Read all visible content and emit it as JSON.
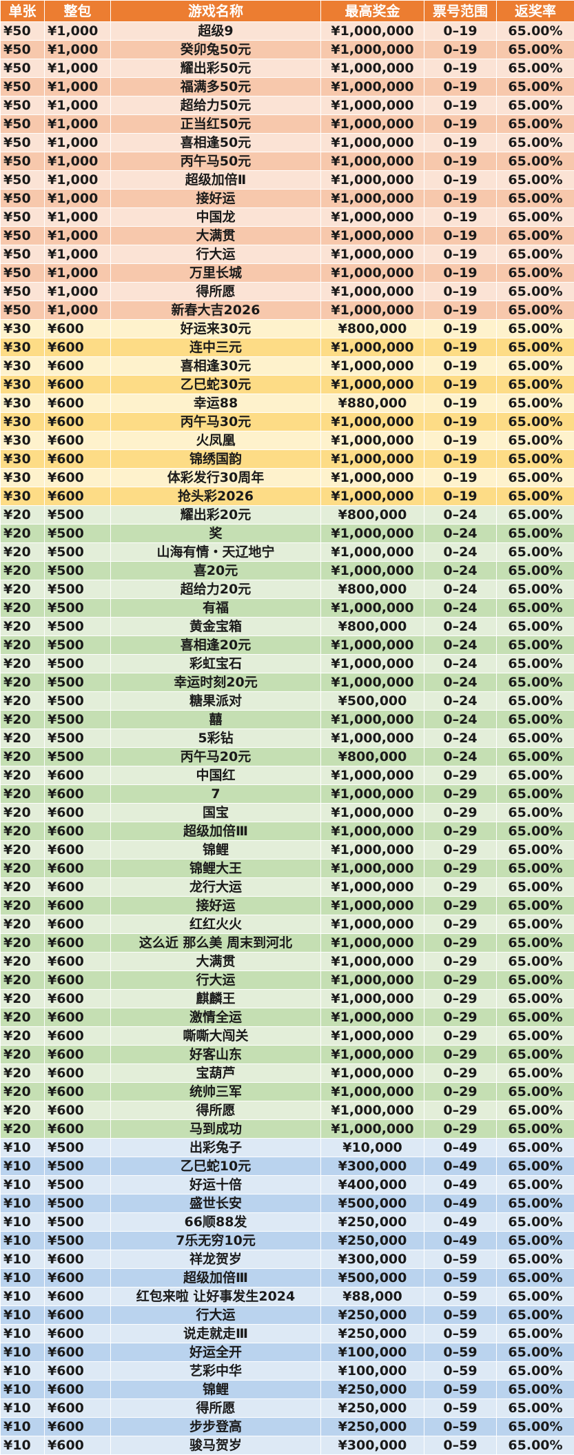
{
  "headers": [
    "单张",
    "整包",
    "游戏名称",
    "最高奖金",
    "票号范围",
    "返奖率"
  ],
  "tier_colors": {
    "header": "#ec7d31",
    "t50": [
      "#fbe3d5",
      "#f7c8ac"
    ],
    "t30": [
      "#fef2cc",
      "#fddc86"
    ],
    "t20": [
      "#e3eed9",
      "#c5dfb3"
    ],
    "t10": [
      "#dde9f5",
      "#bad3ee"
    ]
  },
  "rows": [
    {
      "tier": "t50",
      "price": "¥50",
      "pack": "¥1,000",
      "name": "超级9",
      "prize": "¥1,000,000",
      "range": "0–19",
      "rate": "65.00%"
    },
    {
      "tier": "t50",
      "price": "¥50",
      "pack": "¥1,000",
      "name": "癸卯兔50元",
      "prize": "¥1,000,000",
      "range": "0–19",
      "rate": "65.00%"
    },
    {
      "tier": "t50",
      "price": "¥50",
      "pack": "¥1,000",
      "name": "耀出彩50元",
      "prize": "¥1,000,000",
      "range": "0–19",
      "rate": "65.00%"
    },
    {
      "tier": "t50",
      "price": "¥50",
      "pack": "¥1,000",
      "name": "福满多50元",
      "prize": "¥1,000,000",
      "range": "0–19",
      "rate": "65.00%"
    },
    {
      "tier": "t50",
      "price": "¥50",
      "pack": "¥1,000",
      "name": "超给力50元",
      "prize": "¥1,000,000",
      "range": "0–19",
      "rate": "65.00%"
    },
    {
      "tier": "t50",
      "price": "¥50",
      "pack": "¥1,000",
      "name": "正当红50元",
      "prize": "¥1,000,000",
      "range": "0–19",
      "rate": "65.00%"
    },
    {
      "tier": "t50",
      "price": "¥50",
      "pack": "¥1,000",
      "name": "喜相逢50元",
      "prize": "¥1,000,000",
      "range": "0–19",
      "rate": "65.00%"
    },
    {
      "tier": "t50",
      "price": "¥50",
      "pack": "¥1,000",
      "name": "丙午马50元",
      "prize": "¥1,000,000",
      "range": "0–19",
      "rate": "65.00%"
    },
    {
      "tier": "t50",
      "price": "¥50",
      "pack": "¥1,000",
      "name": "超级加倍Ⅱ",
      "prize": "¥1,000,000",
      "range": "0–19",
      "rate": "65.00%"
    },
    {
      "tier": "t50",
      "price": "¥50",
      "pack": "¥1,000",
      "name": "接好运",
      "prize": "¥1,000,000",
      "range": "0–19",
      "rate": "65.00%"
    },
    {
      "tier": "t50",
      "price": "¥50",
      "pack": "¥1,000",
      "name": "中国龙",
      "prize": "¥1,000,000",
      "range": "0–19",
      "rate": "65.00%"
    },
    {
      "tier": "t50",
      "price": "¥50",
      "pack": "¥1,000",
      "name": "大满贯",
      "prize": "¥1,000,000",
      "range": "0–19",
      "rate": "65.00%"
    },
    {
      "tier": "t50",
      "price": "¥50",
      "pack": "¥1,000",
      "name": "行大运",
      "prize": "¥1,000,000",
      "range": "0–19",
      "rate": "65.00%"
    },
    {
      "tier": "t50",
      "price": "¥50",
      "pack": "¥1,000",
      "name": "万里长城",
      "prize": "¥1,000,000",
      "range": "0–19",
      "rate": "65.00%"
    },
    {
      "tier": "t50",
      "price": "¥50",
      "pack": "¥1,000",
      "name": "得所愿",
      "prize": "¥1,000,000",
      "range": "0–19",
      "rate": "65.00%"
    },
    {
      "tier": "t50",
      "price": "¥50",
      "pack": "¥1,000",
      "name": "新春大吉2026",
      "prize": "¥1,000,000",
      "range": "0–19",
      "rate": "65.00%"
    },
    {
      "tier": "t30",
      "price": "¥30",
      "pack": "¥600",
      "name": "好运来30元",
      "prize": "¥800,000",
      "range": "0–19",
      "rate": "65.00%"
    },
    {
      "tier": "t30",
      "price": "¥30",
      "pack": "¥600",
      "name": "连中三元",
      "prize": "¥1,000,000",
      "range": "0–19",
      "rate": "65.00%"
    },
    {
      "tier": "t30",
      "price": "¥30",
      "pack": "¥600",
      "name": "喜相逢30元",
      "prize": "¥1,000,000",
      "range": "0–19",
      "rate": "65.00%"
    },
    {
      "tier": "t30",
      "price": "¥30",
      "pack": "¥600",
      "name": "乙巳蛇30元",
      "prize": "¥1,000,000",
      "range": "0–19",
      "rate": "65.00%"
    },
    {
      "tier": "t30",
      "price": "¥30",
      "pack": "¥600",
      "name": "幸运88",
      "prize": "¥880,000",
      "range": "0–19",
      "rate": "65.00%"
    },
    {
      "tier": "t30",
      "price": "¥30",
      "pack": "¥600",
      "name": "丙午马30元",
      "prize": "¥1,000,000",
      "range": "0–19",
      "rate": "65.00%"
    },
    {
      "tier": "t30",
      "price": "¥30",
      "pack": "¥600",
      "name": "火凤凰",
      "prize": "¥1,000,000",
      "range": "0–19",
      "rate": "65.00%"
    },
    {
      "tier": "t30",
      "price": "¥30",
      "pack": "¥600",
      "name": "锦绣国韵",
      "prize": "¥1,000,000",
      "range": "0–19",
      "rate": "65.00%"
    },
    {
      "tier": "t30",
      "price": "¥30",
      "pack": "¥600",
      "name": "体彩发行30周年",
      "prize": "¥1,000,000",
      "range": "0–19",
      "rate": "65.00%"
    },
    {
      "tier": "t30",
      "price": "¥30",
      "pack": "¥600",
      "name": "抢头彩2026",
      "prize": "¥1,000,000",
      "range": "0–19",
      "rate": "65.00%"
    },
    {
      "tier": "t20",
      "price": "¥20",
      "pack": "¥500",
      "name": "耀出彩20元",
      "prize": "¥800,000",
      "range": "0–24",
      "rate": "65.00%"
    },
    {
      "tier": "t20",
      "price": "¥20",
      "pack": "¥500",
      "name": "奖",
      "prize": "¥1,000,000",
      "range": "0–24",
      "rate": "65.00%"
    },
    {
      "tier": "t20",
      "price": "¥20",
      "pack": "¥500",
      "name": "山海有情・天辽地宁",
      "prize": "¥1,000,000",
      "range": "0–24",
      "rate": "65.00%"
    },
    {
      "tier": "t20",
      "price": "¥20",
      "pack": "¥500",
      "name": "喜20元",
      "prize": "¥1,000,000",
      "range": "0–24",
      "rate": "65.00%"
    },
    {
      "tier": "t20",
      "price": "¥20",
      "pack": "¥500",
      "name": "超给力20元",
      "prize": "¥800,000",
      "range": "0–24",
      "rate": "65.00%"
    },
    {
      "tier": "t20",
      "price": "¥20",
      "pack": "¥500",
      "name": "有福",
      "prize": "¥1,000,000",
      "range": "0–24",
      "rate": "65.00%"
    },
    {
      "tier": "t20",
      "price": "¥20",
      "pack": "¥500",
      "name": "黄金宝箱",
      "prize": "¥800,000",
      "range": "0–24",
      "rate": "65.00%"
    },
    {
      "tier": "t20",
      "price": "¥20",
      "pack": "¥500",
      "name": "喜相逢20元",
      "prize": "¥1,000,000",
      "range": "0–24",
      "rate": "65.00%"
    },
    {
      "tier": "t20",
      "price": "¥20",
      "pack": "¥500",
      "name": "彩虹宝石",
      "prize": "¥1,000,000",
      "range": "0–24",
      "rate": "65.00%"
    },
    {
      "tier": "t20",
      "price": "¥20",
      "pack": "¥500",
      "name": "幸运时刻20元",
      "prize": "¥1,000,000",
      "range": "0–24",
      "rate": "65.00%"
    },
    {
      "tier": "t20",
      "price": "¥20",
      "pack": "¥500",
      "name": "糖果派对",
      "prize": "¥500,000",
      "range": "0–24",
      "rate": "65.00%"
    },
    {
      "tier": "t20",
      "price": "¥20",
      "pack": "¥500",
      "name": "囍",
      "prize": "¥1,000,000",
      "range": "0–24",
      "rate": "65.00%"
    },
    {
      "tier": "t20",
      "price": "¥20",
      "pack": "¥500",
      "name": "5彩钻",
      "prize": "¥1,000,000",
      "range": "0–24",
      "rate": "65.00%"
    },
    {
      "tier": "t20",
      "price": "¥20",
      "pack": "¥500",
      "name": "丙午马20元",
      "prize": "¥800,000",
      "range": "0–24",
      "rate": "65.00%"
    },
    {
      "tier": "t20",
      "price": "¥20",
      "pack": "¥600",
      "name": "中国红",
      "prize": "¥1,000,000",
      "range": "0–29",
      "rate": "65.00%"
    },
    {
      "tier": "t20",
      "price": "¥20",
      "pack": "¥600",
      "name": "7",
      "prize": "¥1,000,000",
      "range": "0–29",
      "rate": "65.00%"
    },
    {
      "tier": "t20",
      "price": "¥20",
      "pack": "¥600",
      "name": "国宝",
      "prize": "¥1,000,000",
      "range": "0–29",
      "rate": "65.00%"
    },
    {
      "tier": "t20",
      "price": "¥20",
      "pack": "¥600",
      "name": "超级加倍Ⅲ",
      "prize": "¥1,000,000",
      "range": "0–29",
      "rate": "65.00%"
    },
    {
      "tier": "t20",
      "price": "¥20",
      "pack": "¥600",
      "name": "锦鲤",
      "prize": "¥1,000,000",
      "range": "0–29",
      "rate": "65.00%"
    },
    {
      "tier": "t20",
      "price": "¥20",
      "pack": "¥600",
      "name": "锦鲤大王",
      "prize": "¥1,000,000",
      "range": "0–29",
      "rate": "65.00%"
    },
    {
      "tier": "t20",
      "price": "¥20",
      "pack": "¥600",
      "name": "龙行大运",
      "prize": "¥1,000,000",
      "range": "0–29",
      "rate": "65.00%"
    },
    {
      "tier": "t20",
      "price": "¥20",
      "pack": "¥600",
      "name": "接好运",
      "prize": "¥1,000,000",
      "range": "0–29",
      "rate": "65.00%"
    },
    {
      "tier": "t20",
      "price": "¥20",
      "pack": "¥600",
      "name": "红红火火",
      "prize": "¥1,000,000",
      "range": "0–29",
      "rate": "65.00%"
    },
    {
      "tier": "t20",
      "price": "¥20",
      "pack": "¥600",
      "name": "这么近 那么美 周末到河北",
      "prize": "¥1,000,000",
      "range": "0–29",
      "rate": "65.00%"
    },
    {
      "tier": "t20",
      "price": "¥20",
      "pack": "¥600",
      "name": "大满贯",
      "prize": "¥1,000,000",
      "range": "0–29",
      "rate": "65.00%"
    },
    {
      "tier": "t20",
      "price": "¥20",
      "pack": "¥600",
      "name": "行大运",
      "prize": "¥1,000,000",
      "range": "0–29",
      "rate": "65.00%"
    },
    {
      "tier": "t20",
      "price": "¥20",
      "pack": "¥600",
      "name": "麒麟王",
      "prize": "¥1,000,000",
      "range": "0–29",
      "rate": "65.00%"
    },
    {
      "tier": "t20",
      "price": "¥20",
      "pack": "¥600",
      "name": "激情全运",
      "prize": "¥1,000,000",
      "range": "0–29",
      "rate": "65.00%"
    },
    {
      "tier": "t20",
      "price": "¥20",
      "pack": "¥600",
      "name": "嘶嘶大闯关",
      "prize": "¥1,000,000",
      "range": "0–29",
      "rate": "65.00%"
    },
    {
      "tier": "t20",
      "price": "¥20",
      "pack": "¥600",
      "name": "好客山东",
      "prize": "¥1,000,000",
      "range": "0–29",
      "rate": "65.00%"
    },
    {
      "tier": "t20",
      "price": "¥20",
      "pack": "¥600",
      "name": "宝葫芦",
      "prize": "¥1,000,000",
      "range": "0–29",
      "rate": "65.00%"
    },
    {
      "tier": "t20",
      "price": "¥20",
      "pack": "¥600",
      "name": "统帅三军",
      "prize": "¥1,000,000",
      "range": "0–29",
      "rate": "65.00%"
    },
    {
      "tier": "t20",
      "price": "¥20",
      "pack": "¥600",
      "name": "得所愿",
      "prize": "¥1,000,000",
      "range": "0–29",
      "rate": "65.00%"
    },
    {
      "tier": "t20",
      "price": "¥20",
      "pack": "¥600",
      "name": "马到成功",
      "prize": "¥1,000,000",
      "range": "0–29",
      "rate": "65.00%"
    },
    {
      "tier": "t10",
      "price": "¥10",
      "pack": "¥500",
      "name": "出彩兔子",
      "prize": "¥10,000",
      "range": "0–49",
      "rate": "65.00%"
    },
    {
      "tier": "t10",
      "price": "¥10",
      "pack": "¥500",
      "name": "乙巳蛇10元",
      "prize": "¥300,000",
      "range": "0–49",
      "rate": "65.00%"
    },
    {
      "tier": "t10",
      "price": "¥10",
      "pack": "¥500",
      "name": "好运十倍",
      "prize": "¥400,000",
      "range": "0–49",
      "rate": "65.00%"
    },
    {
      "tier": "t10",
      "price": "¥10",
      "pack": "¥500",
      "name": "盛世长安",
      "prize": "¥500,000",
      "range": "0–49",
      "rate": "65.00%"
    },
    {
      "tier": "t10",
      "price": "¥10",
      "pack": "¥500",
      "name": "66顺88发",
      "prize": "¥250,000",
      "range": "0–49",
      "rate": "65.00%"
    },
    {
      "tier": "t10",
      "price": "¥10",
      "pack": "¥500",
      "name": "7乐无穷10元",
      "prize": "¥250,000",
      "range": "0–49",
      "rate": "65.00%"
    },
    {
      "tier": "t10",
      "price": "¥10",
      "pack": "¥600",
      "name": "祥龙贺岁",
      "prize": "¥300,000",
      "range": "0–59",
      "rate": "65.00%"
    },
    {
      "tier": "t10",
      "price": "¥10",
      "pack": "¥600",
      "name": "超级加倍Ⅲ",
      "prize": "¥500,000",
      "range": "0–59",
      "rate": "65.00%"
    },
    {
      "tier": "t10",
      "price": "¥10",
      "pack": "¥600",
      "name": "红包来啦 让好事发生2024",
      "prize": "¥88,000",
      "range": "0–59",
      "rate": "65.00%"
    },
    {
      "tier": "t10",
      "price": "¥10",
      "pack": "¥600",
      "name": "行大运",
      "prize": "¥250,000",
      "range": "0–59",
      "rate": "65.00%"
    },
    {
      "tier": "t10",
      "price": "¥10",
      "pack": "¥600",
      "name": "说走就走Ⅲ",
      "prize": "¥250,000",
      "range": "0–59",
      "rate": "65.00%"
    },
    {
      "tier": "t10",
      "price": "¥10",
      "pack": "¥600",
      "name": "好运全开",
      "prize": "¥100,000",
      "range": "0–59",
      "rate": "65.00%"
    },
    {
      "tier": "t10",
      "price": "¥10",
      "pack": "¥600",
      "name": "艺彩中华",
      "prize": "¥100,000",
      "range": "0–59",
      "rate": "65.00%"
    },
    {
      "tier": "t10",
      "price": "¥10",
      "pack": "¥600",
      "name": "锦鲤",
      "prize": "¥250,000",
      "range": "0–59",
      "rate": "65.00%"
    },
    {
      "tier": "t10",
      "price": "¥10",
      "pack": "¥600",
      "name": "得所愿",
      "prize": "¥250,000",
      "range": "0–59",
      "rate": "65.00%"
    },
    {
      "tier": "t10",
      "price": "¥10",
      "pack": "¥600",
      "name": "步步登高",
      "prize": "¥250,000",
      "range": "0–59",
      "rate": "65.00%"
    },
    {
      "tier": "t10",
      "price": "¥10",
      "pack": "¥600",
      "name": "骏马贺岁",
      "prize": "¥300,000",
      "range": "0–59",
      "rate": "65.00%"
    }
  ]
}
